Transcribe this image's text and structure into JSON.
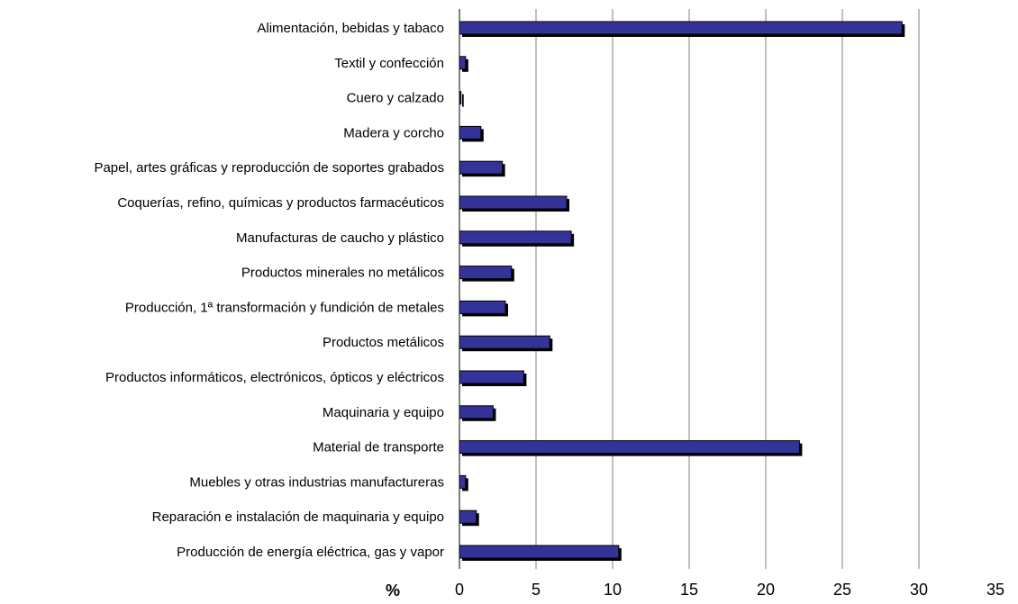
{
  "chart_data": {
    "type": "bar",
    "orientation": "horizontal",
    "title": "",
    "xlabel": "%",
    "ylabel": "",
    "xlim": [
      0,
      35
    ],
    "xticks": [
      "0",
      "5",
      "10",
      "15",
      "20",
      "25",
      "30",
      "35"
    ],
    "grid": "vertical",
    "legend": "none",
    "bar_color": "#333399",
    "shadow_color": "#000000",
    "categories": [
      "Alimentación, bebidas y tabaco",
      "Textil y confección",
      "Cuero y calzado",
      "Madera y corcho",
      "Papel, artes gráficas y reproducción de soportes grabados",
      "Coquerías, refino, químicas y productos farmacéuticos",
      "Manufacturas de caucho y plástico",
      "Productos minerales no metálicos",
      "Producción, 1ª transformación y fundición de metales",
      "Productos  metálicos",
      "Productos informáticos, electrónicos, ópticos y eléctricos",
      "Maquinaria y equipo",
      "Material de transporte",
      "Muebles y otras industrias manufactureras",
      "Reparación e instalación de maquinaria y equipo",
      "Producción de energía eléctrica, gas y vapor"
    ],
    "values": [
      28.9,
      0.4,
      0.1,
      1.4,
      2.8,
      7.0,
      7.3,
      3.4,
      3.0,
      5.9,
      4.2,
      2.2,
      22.2,
      0.4,
      1.1,
      10.4
    ]
  }
}
